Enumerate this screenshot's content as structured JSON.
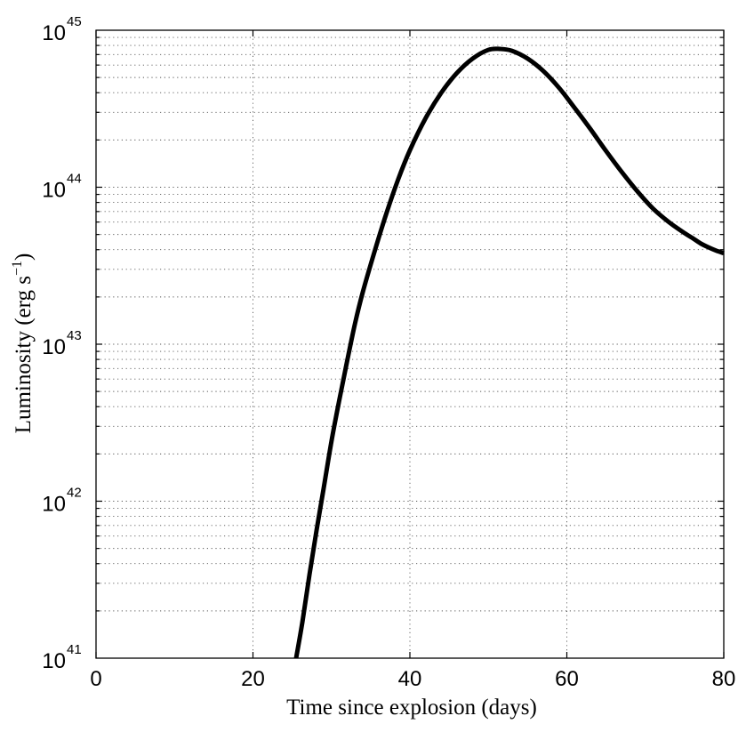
{
  "chart_data": {
    "type": "line",
    "title": "",
    "xlabel": "Time since explosion (days)",
    "ylabel": "Luminosity (erg s",
    "ylabel_superscript": "−1",
    "ylabel_close": ")",
    "xlim": [
      0,
      80
    ],
    "ylim": [
      1e+41,
      1e+45
    ],
    "yscale": "log",
    "grid": true,
    "grid_minor": true,
    "legend": "none",
    "x_ticks": [
      0,
      20,
      40,
      60,
      80
    ],
    "x_tick_labels": [
      "0",
      "20",
      "40",
      "60",
      "80"
    ],
    "y_ticks": [
      1e+41,
      1e+42,
      1e+43,
      1e+44,
      1e+45
    ],
    "y_tick_labels": [
      {
        "base": "10",
        "exp": "41"
      },
      {
        "base": "10",
        "exp": "42"
      },
      {
        "base": "10",
        "exp": "43"
      },
      {
        "base": "10",
        "exp": "44"
      },
      {
        "base": "10",
        "exp": "45"
      }
    ],
    "series": [
      {
        "color": "#000000",
        "x": [
          25.5,
          26.3,
          27.2,
          28.1,
          29.0,
          30.0,
          31.0,
          32.0,
          33.0,
          34.0,
          35.5,
          37.0,
          38.5,
          40.0,
          42.0,
          44.0,
          46.0,
          48.0,
          50.0,
          51.5,
          53.0,
          55.0,
          57.0,
          59.0,
          61.0,
          63.0,
          65.0,
          67.0,
          69.0,
          71.0,
          73.0,
          75.0,
          76.0,
          77.0,
          78.0,
          79.0,
          80.0
        ],
        "y": [
          1e+41,
          1.7e+41,
          3.4e+41,
          6.5e+41,
          1.2e+42,
          2.4e+42,
          4.4e+42,
          7.8e+42,
          1.35e+43,
          2.15e+43,
          3.9e+43,
          6.8e+43,
          1.12e+44,
          1.72e+44,
          2.75e+44,
          4e+44,
          5.35e+44,
          6.6e+44,
          7.5e+44,
          7.6e+44,
          7.4e+44,
          6.6e+44,
          5.5e+44,
          4.3e+44,
          3.2e+44,
          2.35e+44,
          1.7e+44,
          1.25e+44,
          9.4e+43,
          7.3e+43,
          6e+43,
          5.1e+43,
          4.75e+43,
          4.4e+43,
          4.15e+43,
          3.95e+43,
          3.8e+43
        ]
      }
    ]
  }
}
